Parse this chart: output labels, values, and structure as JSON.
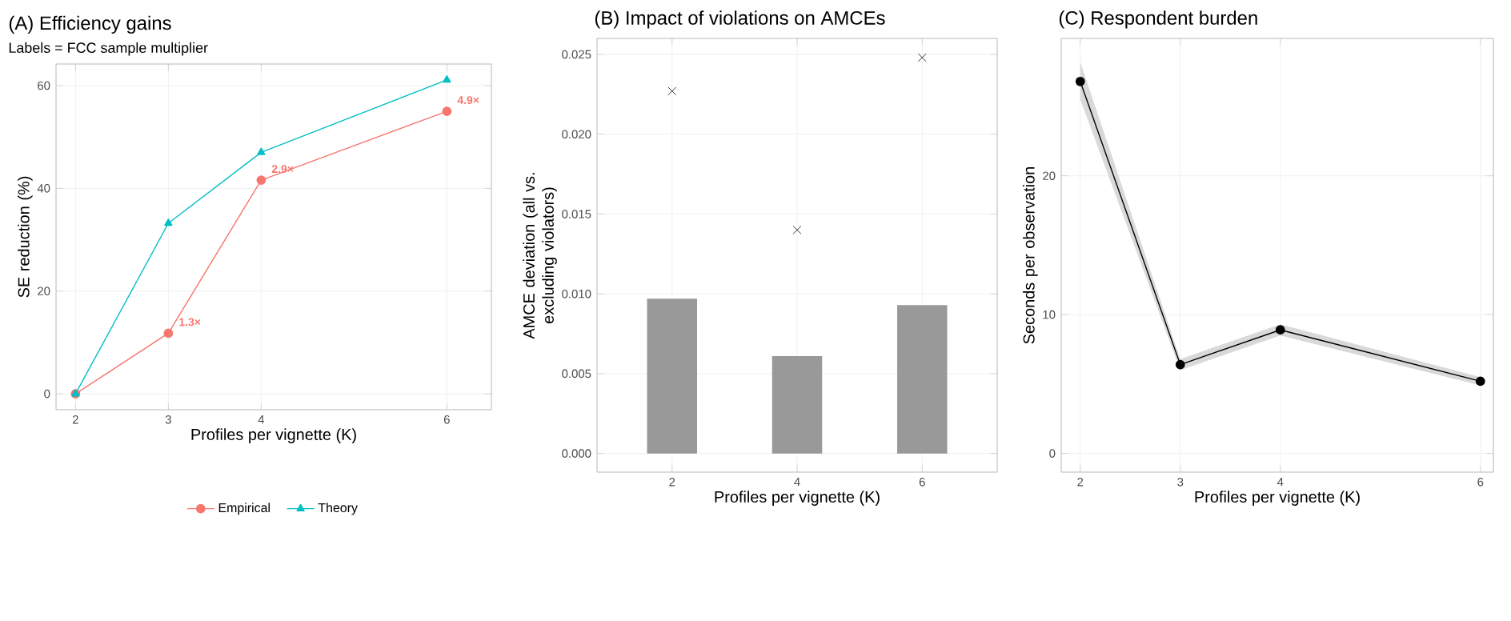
{
  "chart_data": [
    {
      "type": "line",
      "title": "(A) Efficiency gains",
      "subtitle": "Labels = FCC sample multiplier",
      "xlabel": "Profiles per vignette (K)",
      "ylabel": "SE reduction (%)",
      "x": [
        2,
        3,
        4,
        6
      ],
      "xlim": [
        1.79,
        6.48
      ],
      "xticks": [
        2,
        3,
        4,
        6
      ],
      "ylim": [
        -3.1,
        64.2
      ],
      "yticks": [
        0,
        20,
        40,
        60
      ],
      "grid": true,
      "legend": "bottom",
      "series": [
        {
          "name": "Empirical",
          "color": "#f8766d",
          "marker": "circle",
          "values": [
            0,
            11.8,
            41.6,
            55.0
          ]
        },
        {
          "name": "Theory",
          "color": "#00bfc4",
          "marker": "triangle",
          "values": [
            0,
            33.2,
            47.0,
            61.1
          ]
        }
      ],
      "annotations": [
        {
          "text": "1.3×",
          "x": 3,
          "y": 11.8
        },
        {
          "text": "2.9×",
          "x": 4,
          "y": 41.6
        },
        {
          "text": "4.9×",
          "x": 6,
          "y": 55.0
        }
      ]
    },
    {
      "type": "bar",
      "title": "(B) Impact of violations on AMCEs",
      "xlabel": "Profiles per vignette (K)",
      "ylabel": "AMCE deviation (all vs. excluding violators)",
      "categories": [
        "2",
        "4",
        "6"
      ],
      "ylim": [
        -0.00117,
        0.026
      ],
      "yticks": [
        {
          "value": 0,
          "label": "0.000"
        },
        {
          "value": 0.005,
          "label": "0.005"
        },
        {
          "value": 0.01,
          "label": "0.010"
        },
        {
          "value": 0.015,
          "label": "0.015"
        },
        {
          "value": 0.02,
          "label": "0.020"
        },
        {
          "value": 0.025,
          "label": "0.025"
        }
      ],
      "grid": true,
      "series": [
        {
          "color": "#999999",
          "values": [
            0.0097,
            0.0061,
            0.0093
          ]
        },
        {
          "type": "scatter",
          "marker": "cross",
          "color": "#000000",
          "x": [
            "2",
            "4",
            "6"
          ],
          "values": [
            0.0227,
            0.014,
            0.0248
          ]
        }
      ]
    },
    {
      "type": "line",
      "title": "(C) Respondent burden",
      "xlabel": "Profiles per vignette (K)",
      "ylabel": "Seconds per observation",
      "x": [
        2,
        3,
        4,
        6
      ],
      "xlim": [
        1.81,
        6.13
      ],
      "xticks": [
        2,
        3,
        4,
        6
      ],
      "ylim": [
        -1.35,
        29.9
      ],
      "yticks": [
        0,
        10,
        20
      ],
      "grid": true,
      "marker": "circle",
      "series": [
        {
          "color": "#000000",
          "values": [
            26.8,
            6.4,
            8.9,
            5.2
          ],
          "lower": [
            25.5,
            6.0,
            8.5,
            4.9
          ],
          "upper": [
            28.2,
            6.8,
            9.3,
            5.5
          ]
        }
      ]
    }
  ]
}
